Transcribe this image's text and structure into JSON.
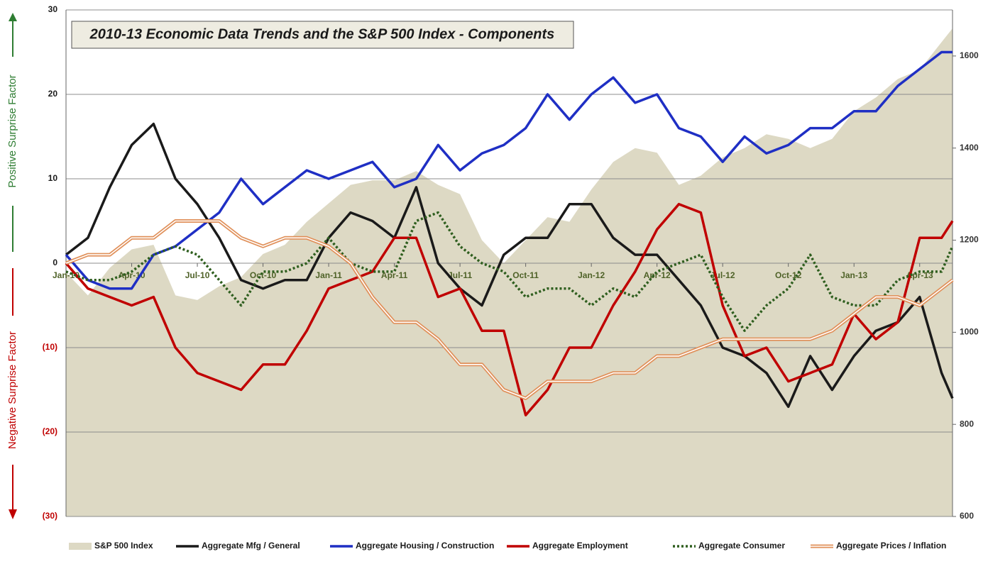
{
  "chart_data": {
    "type": "line",
    "title": "2010-13 Economic Data Trends and the S&P 500 Index - Components",
    "y_label_positive": "Positive Surprise Factor",
    "y_label_negative": "Negative Surprise Factor",
    "x": [
      0,
      1,
      2,
      3,
      4,
      5,
      6,
      7,
      8,
      9,
      10,
      11,
      12,
      13,
      14,
      15,
      16,
      17,
      18,
      19,
      20,
      21,
      22,
      23,
      24,
      25,
      26,
      27,
      28,
      29,
      30,
      31,
      32,
      33,
      34,
      35,
      36,
      37,
      38,
      39,
      40,
      40.5
    ],
    "xlim": [
      0,
      40.5
    ],
    "xticks": [
      {
        "value": 0,
        "label": "Jan-10"
      },
      {
        "value": 3,
        "label": "Apr-10"
      },
      {
        "value": 6,
        "label": "Jul-10"
      },
      {
        "value": 9,
        "label": "Oct-10"
      },
      {
        "value": 12,
        "label": "Jan-11"
      },
      {
        "value": 15,
        "label": "Apr-11"
      },
      {
        "value": 18,
        "label": "Jul-11"
      },
      {
        "value": 21,
        "label": "Oct-11"
      },
      {
        "value": 24,
        "label": "Jan-12"
      },
      {
        "value": 27,
        "label": "Apr-12"
      },
      {
        "value": 30,
        "label": "Jul-12"
      },
      {
        "value": 33,
        "label": "Oct-12"
      },
      {
        "value": 36,
        "label": "Jan-13"
      },
      {
        "value": 39,
        "label": "Apr-13"
      }
    ],
    "ylim": [
      -30,
      30
    ],
    "yticks": [
      30,
      20,
      10,
      0,
      {
        "value": -10,
        "label": "(10)"
      },
      {
        "value": -20,
        "label": "(20)"
      },
      {
        "value": -30,
        "label": "(30)"
      }
    ],
    "y2lim": [
      600,
      1700
    ],
    "y2ticks": [
      600,
      800,
      1000,
      1200,
      1400,
      1600
    ],
    "grid": true,
    "series": [
      {
        "name": "S&P 500 Index",
        "style": "area",
        "axis": "y2",
        "color": "#ddd9c4",
        "values": [
          1130,
          1080,
          1140,
          1180,
          1190,
          1080,
          1070,
          1100,
          1120,
          1170,
          1190,
          1240,
          1280,
          1320,
          1330,
          1330,
          1350,
          1320,
          1300,
          1200,
          1150,
          1200,
          1250,
          1240,
          1310,
          1370,
          1400,
          1390,
          1320,
          1340,
          1380,
          1400,
          1430,
          1420,
          1400,
          1420,
          1480,
          1510,
          1550,
          1570,
          1630,
          1660
        ]
      },
      {
        "name": "Aggregate Mfg / General",
        "style": "solid",
        "color": "#1a1a1a",
        "values": [
          1,
          3,
          9,
          14,
          16.5,
          10,
          7,
          3,
          -2,
          -3,
          -2,
          -2,
          3,
          6,
          5,
          3,
          9,
          0,
          -3,
          -5,
          1,
          3,
          3,
          7,
          7,
          3,
          1,
          1,
          -2,
          -5,
          -10,
          -11,
          -13,
          -17,
          -11,
          -15,
          -11,
          -8,
          -7,
          -4,
          -13,
          -16
        ]
      },
      {
        "name": "Aggregate Housing / Construction",
        "style": "solid",
        "color": "#1f2fc4",
        "values": [
          1,
          -2,
          -3,
          -3,
          1,
          2,
          4,
          6,
          10,
          7,
          9,
          11,
          10,
          11,
          12,
          9,
          10,
          14,
          11,
          13,
          14,
          16,
          20,
          17,
          20,
          22,
          19,
          20,
          16,
          15,
          12,
          15,
          13,
          14,
          16,
          16,
          18,
          18,
          21,
          23,
          25,
          25
        ]
      },
      {
        "name": "Aggregate Employment",
        "style": "solid",
        "color": "#c00000",
        "values": [
          0,
          -3,
          -4,
          -5,
          -4,
          -10,
          -13,
          -14,
          -15,
          -12,
          -12,
          -8,
          -3,
          -2,
          -1,
          3,
          3,
          -4,
          -3,
          -8,
          -8,
          -18,
          -15,
          -10,
          -10,
          -5,
          -1,
          4,
          7,
          6,
          -5,
          -11,
          -10,
          -14,
          -13,
          -12,
          -6,
          -9,
          -7,
          3,
          3,
          5
        ]
      },
      {
        "name": "Aggregate Consumer",
        "style": "dotted",
        "color": "#2e5e1e",
        "values": [
          -1,
          -2,
          -2,
          -1,
          1,
          2,
          1,
          -2,
          -5,
          -1,
          -1,
          0,
          3,
          0,
          -1,
          -1,
          5,
          6,
          2,
          0,
          -1,
          -4,
          -3,
          -3,
          -5,
          -3,
          -4,
          -1,
          0,
          1,
          -4,
          -8,
          -5,
          -3,
          1,
          -4,
          -5,
          -5,
          -2,
          -1,
          -1,
          2
        ]
      },
      {
        "name": "Aggregate Prices / Inflation",
        "style": "double",
        "color": "#e0905a",
        "values": [
          0,
          1,
          1,
          3,
          3,
          5,
          5,
          5,
          3,
          2,
          3,
          3,
          2,
          0,
          -4,
          -7,
          -7,
          -9,
          -12,
          -12,
          -15,
          -16,
          -14,
          -14,
          -14,
          -13,
          -13,
          -11,
          -11,
          -10,
          -9,
          -9,
          -9,
          -9,
          -9,
          -8,
          -6,
          -4,
          -4,
          -5,
          -3,
          -2
        ]
      }
    ]
  }
}
